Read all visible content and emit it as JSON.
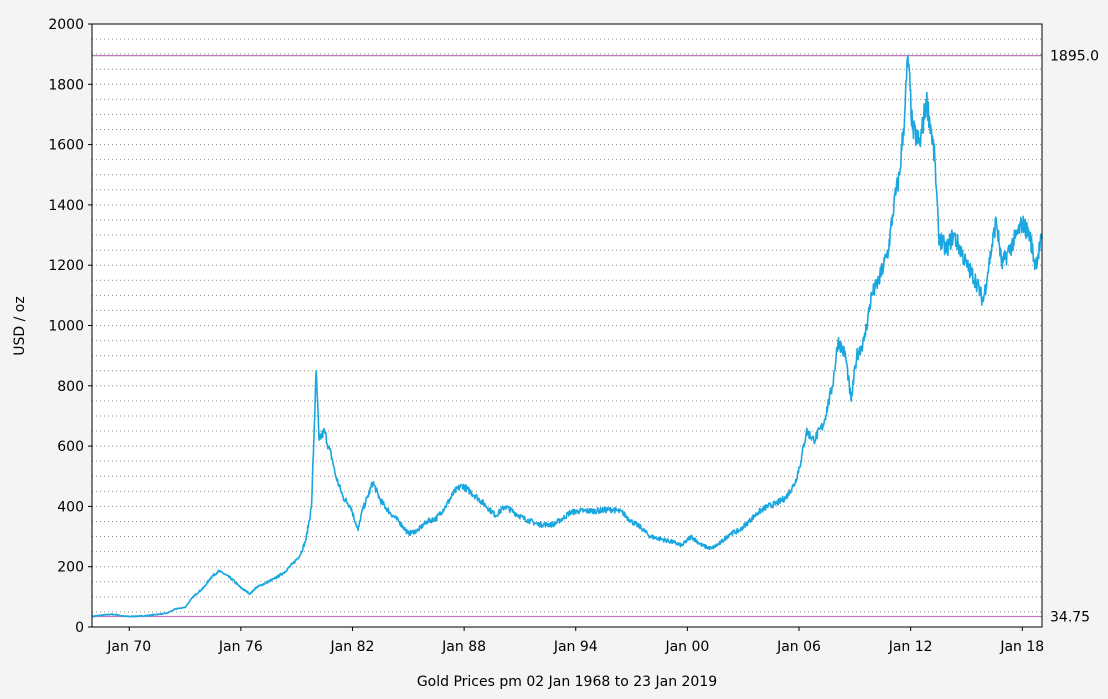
{
  "chart_data": {
    "type": "line",
    "title": "",
    "xlabel": "Gold Prices pm 02 Jan 1968 to 23 Jan 2019",
    "ylabel": "USD / oz",
    "xlim": [
      1968.0,
      2019.06
    ],
    "ylim": [
      0,
      2000
    ],
    "grid": true,
    "legend": "none",
    "y_ticks": [
      "0",
      "200",
      "400",
      "600",
      "800",
      "1000",
      "1200",
      "1400",
      "1600",
      "1800",
      "2000"
    ],
    "x_ticks": [
      {
        "label": "Jan 70",
        "x": 1970
      },
      {
        "label": "Jan 76",
        "x": 1976
      },
      {
        "label": "Jan 82",
        "x": 1982
      },
      {
        "label": "Jan 88",
        "x": 1988
      },
      {
        "label": "Jan 94",
        "x": 1994
      },
      {
        "label": "Jan 00",
        "x": 2000
      },
      {
        "label": "Jan 06",
        "x": 2006
      },
      {
        "label": "Jan 12",
        "x": 2012
      },
      {
        "label": "Jan 18",
        "x": 2018
      }
    ],
    "reference_lines": [
      {
        "label": "1895.0",
        "value": 1895.0,
        "color": "#c078c0"
      },
      {
        "label": "34.75",
        "value": 34.75,
        "color": "#c078c0"
      }
    ],
    "series": [
      {
        "color": "#1aa7e0",
        "x": [
          1968.0,
          1968.5,
          1969.0,
          1969.3,
          1969.7,
          1970.0,
          1970.5,
          1971.0,
          1971.5,
          1972.0,
          1972.5,
          1973.0,
          1973.3,
          1973.6,
          1974.0,
          1974.4,
          1974.8,
          1975.0,
          1975.5,
          1976.0,
          1976.5,
          1976.8,
          1977.3,
          1977.8,
          1978.3,
          1978.8,
          1979.2,
          1979.5,
          1979.8,
          1980.05,
          1980.2,
          1980.5,
          1980.7,
          1980.9,
          1981.1,
          1981.5,
          1981.9,
          1982.3,
          1982.5,
          1982.8,
          1983.1,
          1983.5,
          1984.0,
          1984.5,
          1985.0,
          1985.5,
          1986.0,
          1986.5,
          1987.0,
          1987.5,
          1987.9,
          1988.3,
          1988.7,
          1989.2,
          1989.7,
          1990.2,
          1990.7,
          1991.2,
          1992.0,
          1992.8,
          1993.3,
          1993.7,
          1994.2,
          1995.0,
          1996.0,
          1996.5,
          1997.0,
          1997.5,
          1998.0,
          1998.7,
          1999.3,
          1999.7,
          2000.2,
          2000.8,
          2001.3,
          2001.8,
          2002.3,
          2002.8,
          2003.3,
          2003.8,
          2004.3,
          2004.8,
          2005.3,
          2005.8,
          2006.1,
          2006.4,
          2006.8,
          2007.3,
          2007.8,
          2008.1,
          2008.5,
          2008.8,
          2009.1,
          2009.5,
          2009.9,
          2010.3,
          2010.8,
          2011.1,
          2011.4,
          2011.68,
          2011.85,
          2012.1,
          2012.5,
          2012.85,
          2013.1,
          2013.3,
          2013.5,
          2013.9,
          2014.3,
          2014.7,
          2015.0,
          2015.5,
          2015.9,
          2016.2,
          2016.6,
          2016.9,
          2017.3,
          2017.7,
          2018.0,
          2018.4,
          2018.7,
          2019.06
        ],
        "values": [
          35,
          39,
          42,
          41,
          36,
          35,
          36,
          38,
          42,
          45,
          60,
          65,
          90,
          110,
          130,
          165,
          185,
          180,
          160,
          130,
          110,
          130,
          145,
          160,
          180,
          210,
          240,
          290,
          400,
          850,
          620,
          650,
          600,
          560,
          500,
          430,
          400,
          320,
          380,
          430,
          480,
          420,
          380,
          350,
          310,
          320,
          350,
          360,
          400,
          450,
          470,
          450,
          430,
          400,
          370,
          400,
          380,
          360,
          340,
          340,
          360,
          380,
          385,
          385,
          390,
          380,
          350,
          330,
          300,
          290,
          280,
          270,
          300,
          270,
          260,
          280,
          310,
          320,
          350,
          380,
          400,
          410,
          430,
          480,
          550,
          650,
          620,
          670,
          800,
          950,
          900,
          750,
          900,
          950,
          1100,
          1150,
          1250,
          1400,
          1500,
          1700,
          1895,
          1650,
          1600,
          1750,
          1650,
          1550,
          1300,
          1250,
          1300,
          1250,
          1200,
          1150,
          1080,
          1200,
          1350,
          1200,
          1250,
          1300,
          1340,
          1300,
          1200,
          1290
        ]
      }
    ]
  }
}
